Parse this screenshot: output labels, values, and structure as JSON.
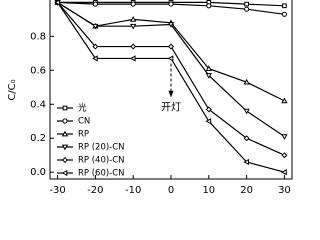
{
  "chart_data": {
    "type": "line",
    "ylabel": "C/C₀",
    "annotation": "开灯",
    "annotation_x": 0,
    "x": [
      -30,
      -20,
      -10,
      0,
      10,
      20,
      30
    ],
    "xlim": [
      -32,
      32
    ],
    "xticks": [
      -30,
      -20,
      -10,
      0,
      10,
      20,
      30
    ],
    "ylim": [
      -0.04,
      1.02
    ],
    "yticks": [
      {
        "value": 0,
        "label": "0.0"
      },
      0.2,
      0.4,
      0.6,
      0.8
    ],
    "series": [
      {
        "name": "光",
        "color": "#000000",
        "marker": "square",
        "values": [
          1.0,
          1.0,
          1.0,
          1.0,
          1.0,
          0.99,
          0.98
        ]
      },
      {
        "name": "CN",
        "color": "#000000",
        "marker": "circle",
        "values": [
          1.0,
          0.99,
          0.99,
          0.99,
          0.98,
          0.96,
          0.93
        ]
      },
      {
        "name": "RP",
        "color": "#000000",
        "marker": "triangle",
        "values": [
          1.0,
          0.86,
          0.9,
          0.88,
          0.61,
          0.53,
          0.42
        ]
      },
      {
        "name": "RP (20)-CN",
        "color": "#000000",
        "marker": "tri-down",
        "values": [
          1.0,
          0.86,
          0.86,
          0.87,
          0.57,
          0.36,
          0.21
        ]
      },
      {
        "name": "RP (40)-CN",
        "color": "#000000",
        "marker": "diamond",
        "values": [
          1.0,
          0.74,
          0.74,
          0.74,
          0.37,
          0.2,
          0.1
        ]
      },
      {
        "name": "RP (60)-CN",
        "color": "#000000",
        "marker": "tri-left",
        "values": [
          1.0,
          0.67,
          0.67,
          0.67,
          0.3,
          0.06,
          0.0
        ]
      }
    ]
  }
}
